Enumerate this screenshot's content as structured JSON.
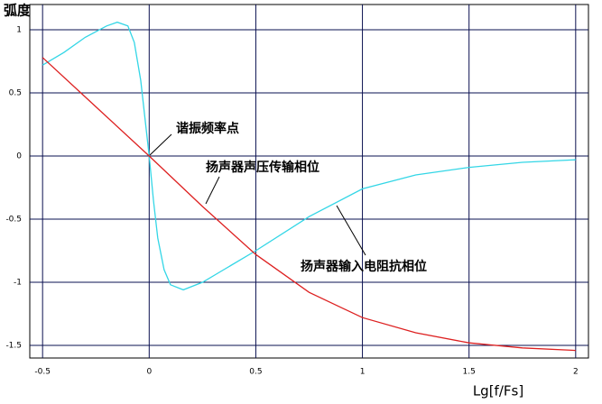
{
  "chart_data": {
    "type": "line",
    "y_label": "弧度",
    "x_label": "Lg[f/Fs]",
    "xlim": [
      -0.56,
      2.06
    ],
    "ylim": [
      -1.6,
      1.2
    ],
    "xticks": [
      -0.5,
      0,
      0.5,
      1,
      1.5,
      2
    ],
    "yticks": [
      1,
      0.5,
      0,
      -0.5,
      -1,
      -1.5
    ],
    "grid": true,
    "series": [
      {
        "name": "扬声器输入电阻抗相位",
        "color": "#33d6e6",
        "x": [
          -0.5,
          -0.4,
          -0.3,
          -0.2,
          -0.15,
          -0.1,
          -0.07,
          -0.04,
          -0.02,
          0,
          0.02,
          0.04,
          0.07,
          0.1,
          0.16,
          0.25,
          0.35,
          0.5,
          0.75,
          1,
          1.25,
          1.5,
          1.75,
          2
        ],
        "values": [
          0.72,
          0.82,
          0.94,
          1.03,
          1.06,
          1.03,
          0.9,
          0.6,
          0.3,
          0,
          -0.35,
          -0.65,
          -0.9,
          -1.02,
          -1.06,
          -1.0,
          -0.9,
          -0.75,
          -0.48,
          -0.26,
          -0.15,
          -0.09,
          -0.05,
          -0.03
        ]
      },
      {
        "name": "扬声器声压传输相位",
        "color": "#dd2020",
        "x": [
          -0.5,
          -0.25,
          0,
          0.25,
          0.5,
          0.75,
          1,
          1.25,
          1.5,
          1.75,
          2
        ],
        "values": [
          0.78,
          0.39,
          0,
          -0.4,
          -0.78,
          -1.08,
          -1.28,
          -1.4,
          -1.48,
          -1.52,
          -1.54
        ]
      }
    ],
    "annotations": [
      "谐振频率点"
    ]
  }
}
